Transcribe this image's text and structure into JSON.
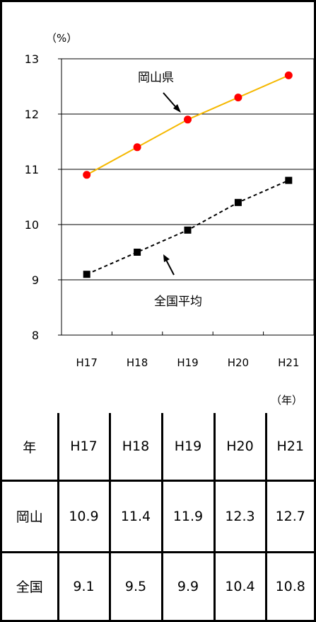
{
  "chart_data": {
    "type": "line",
    "y_unit": "（%）",
    "x_unit": "（年）",
    "categories": [
      "H17",
      "H18",
      "H19",
      "H20",
      "H21"
    ],
    "ylim": [
      8,
      13
    ],
    "yticks": [
      8,
      9,
      10,
      11,
      12,
      13
    ],
    "grid": true,
    "series": [
      {
        "name": "岡山県",
        "values": [
          10.9,
          11.4,
          11.9,
          12.3,
          12.7
        ],
        "color": "#f5b800",
        "marker": "circle",
        "marker_color": "#ff0000",
        "line_style": "solid"
      },
      {
        "name": "全国平均",
        "values": [
          9.1,
          9.5,
          9.9,
          10.4,
          10.8
        ],
        "color": "#000000",
        "marker": "square",
        "marker_color": "#000000",
        "line_style": "dashed"
      }
    ]
  },
  "table": {
    "header_label": "年",
    "columns": [
      "H17",
      "H18",
      "H19",
      "H20",
      "H21"
    ],
    "rows": [
      {
        "label": "岡山",
        "values": [
          "10.9",
          "11.4",
          "11.9",
          "12.3",
          "12.7"
        ]
      },
      {
        "label": "全国",
        "values": [
          "9.1",
          "9.5",
          "9.9",
          "10.4",
          "10.8"
        ]
      }
    ]
  }
}
